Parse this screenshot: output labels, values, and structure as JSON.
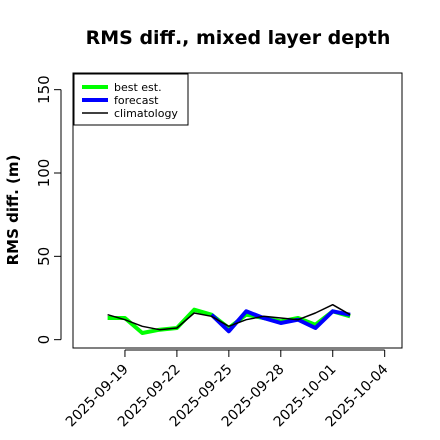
{
  "chart_data": {
    "type": "line",
    "title": "RMS diff., mixed layer depth",
    "ylabel": "RMS diff. (m)",
    "xlabel": "",
    "ylim": [
      -5,
      160
    ],
    "xlim": [
      "2025-09-16",
      "2025-10-05"
    ],
    "y_ticks": [
      0,
      50,
      100,
      150
    ],
    "x_ticks": [
      {
        "date": "2025-09-19",
        "label": "2025-09-19",
        "color": "#000000"
      },
      {
        "date": "2025-09-22",
        "label": "2025-09-22",
        "color": "#000000"
      },
      {
        "date": "2025-09-25",
        "label": "2025-09-25",
        "color": "#228b22"
      },
      {
        "date": "2025-09-28",
        "label": "2025-09-28",
        "color": "#000000"
      },
      {
        "date": "2025-10-01",
        "label": "2025-10-01",
        "color": "#000000"
      },
      {
        "date": "2025-10-04",
        "label": "2025-10-04",
        "color": "#000000"
      }
    ],
    "grid": false,
    "legend_position": "top-left",
    "series": [
      {
        "name": "best est.",
        "color": "#00ff00",
        "width": 4,
        "x": [
          "2025-09-18",
          "2025-09-19",
          "2025-09-20",
          "2025-09-21",
          "2025-09-22",
          "2025-09-23",
          "2025-09-24",
          "2025-09-25",
          "2025-09-26",
          "2025-09-27",
          "2025-09-28",
          "2025-09-29",
          "2025-09-30",
          "2025-10-01",
          "2025-10-02"
        ],
        "values": [
          13,
          13,
          4,
          6,
          7,
          18,
          15,
          7,
          15,
          13,
          11,
          13,
          9,
          17,
          14
        ]
      },
      {
        "name": "forecast",
        "color": "#0000ff",
        "width": 4,
        "x": [
          "2025-09-24",
          "2025-09-25",
          "2025-09-26",
          "2025-09-27",
          "2025-09-28",
          "2025-09-29",
          "2025-09-30",
          "2025-10-01",
          "2025-10-02"
        ],
        "values": [
          15,
          5,
          17,
          13,
          10,
          12,
          7,
          17,
          15
        ]
      },
      {
        "name": "climatology",
        "color": "#000000",
        "width": 1.5,
        "x": [
          "2025-09-18",
          "2025-09-19",
          "2025-09-20",
          "2025-09-21",
          "2025-09-22",
          "2025-09-23",
          "2025-09-24",
          "2025-09-25",
          "2025-09-26",
          "2025-09-27",
          "2025-09-28",
          "2025-09-29",
          "2025-09-30",
          "2025-10-01",
          "2025-10-02"
        ],
        "values": [
          15,
          12,
          8,
          6,
          7,
          16,
          14,
          8,
          12,
          14,
          13,
          12,
          16,
          21,
          15
        ]
      }
    ]
  }
}
